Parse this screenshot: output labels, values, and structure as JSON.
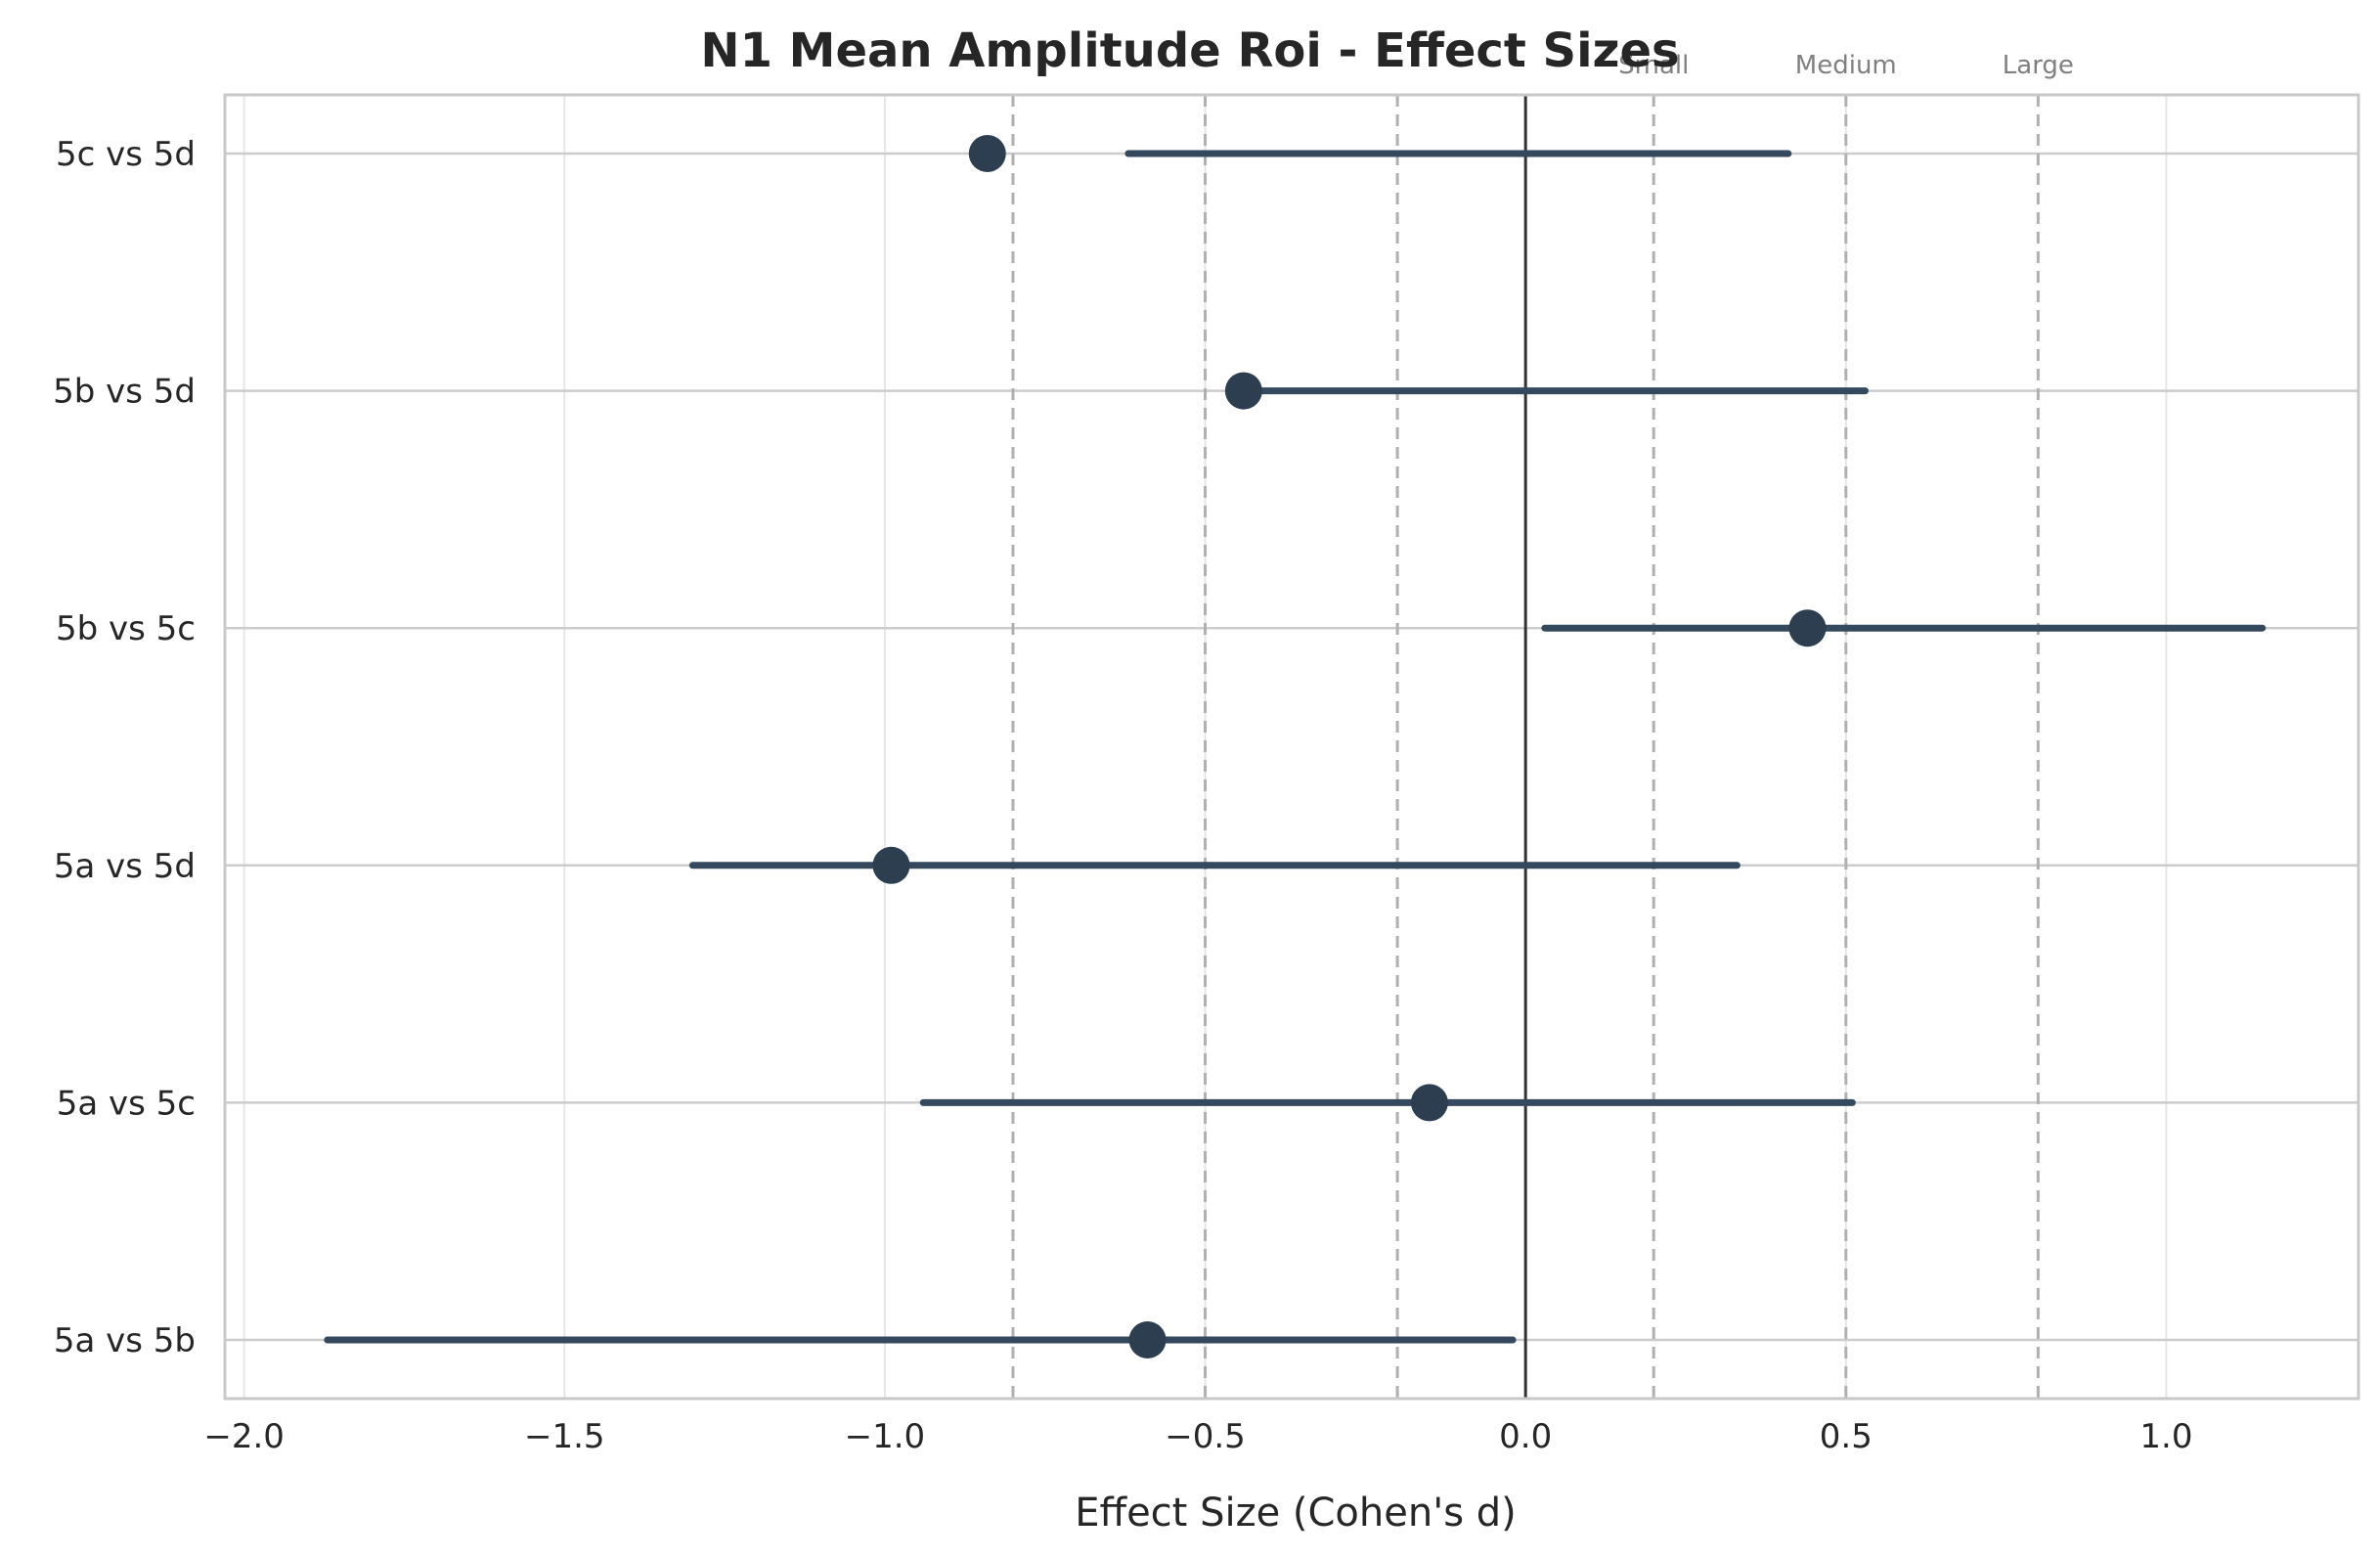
{
  "chart_data": {
    "type": "scatter",
    "title": "N1 Mean Amplitude Roi - Effect Sizes",
    "xlabel": "Effect Size (Cohen's d)",
    "ylabel": "",
    "xlim": [
      -2.03,
      1.3
    ],
    "x_ticks": [
      -2.0,
      -1.5,
      -1.0,
      -0.5,
      0.0,
      0.5,
      1.0
    ],
    "x_tick_labels": [
      "−2.0",
      "−1.5",
      "−1.0",
      "−0.5",
      "0.0",
      "0.5",
      "1.0"
    ],
    "grid": true,
    "zero_line": 0.0,
    "reference_lines": [
      -0.8,
      -0.5,
      -0.2,
      0.2,
      0.5,
      0.8
    ],
    "reference_labels": [
      {
        "x": 0.2,
        "text": "Small"
      },
      {
        "x": 0.5,
        "text": "Medium"
      },
      {
        "x": 0.8,
        "text": "Large"
      }
    ],
    "categories": [
      "5c vs 5d",
      "5b vs 5d",
      "5b vs 5c",
      "5a vs 5d",
      "5a vs 5c",
      "5a vs 5b"
    ],
    "points": [
      {
        "label": "5c vs 5d",
        "d": -0.84,
        "ci_low": -0.62,
        "ci_high": 0.41
      },
      {
        "label": "5b vs 5d",
        "d": -0.44,
        "ci_low": -0.46,
        "ci_high": 0.53
      },
      {
        "label": "5b vs 5c",
        "d": 0.44,
        "ci_low": 0.03,
        "ci_high": 1.15
      },
      {
        "label": "5a vs 5d",
        "d": -0.99,
        "ci_low": -1.3,
        "ci_high": 0.33
      },
      {
        "label": "5a vs 5c",
        "d": -0.15,
        "ci_low": -0.94,
        "ci_high": 0.51
      },
      {
        "label": "5a vs 5b",
        "d": -0.59,
        "ci_low": -1.87,
        "ci_high": -0.02
      }
    ],
    "colors": {
      "marker": "#2c3e50",
      "ci": "#34495e",
      "zero_line": "#333333",
      "reference": "#b0b0b0",
      "grid": "#e6e6e6",
      "axis": "#c8c8c8"
    }
  }
}
